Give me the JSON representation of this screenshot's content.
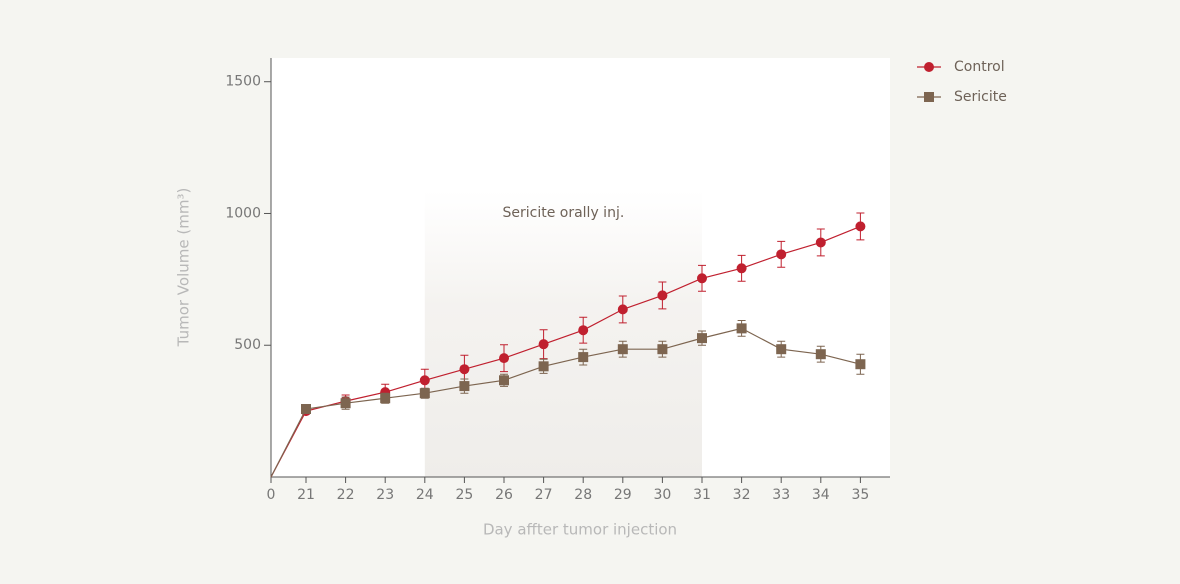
{
  "chart_data": {
    "type": "line",
    "xlabel": "Day affter tumor injection",
    "ylabel": "Tumor Volume (mm³)",
    "annotation": "Sericite orally inj.",
    "shade_x": [
      24,
      31
    ],
    "categories": [
      "0",
      "21",
      "22",
      "23",
      "24",
      "25",
      "26",
      "27",
      "28",
      "29",
      "30",
      "31",
      "32",
      "33",
      "34",
      "35"
    ],
    "series": [
      {
        "name": "Control",
        "color": "#c0202f",
        "marker": "circle",
        "values": [
          0,
          250,
          288,
          322,
          367,
          409,
          451,
          504,
          557,
          636,
          689,
          754,
          792,
          845,
          890,
          951
        ],
        "errors": [
          null,
          10,
          23,
          30,
          42,
          53,
          51,
          55,
          49,
          51,
          51,
          49,
          49,
          49,
          51,
          51
        ]
      },
      {
        "name": "Sericite",
        "color": "#7d6550",
        "marker": "square",
        "values": [
          0,
          258,
          280,
          299,
          318,
          345,
          367,
          420,
          455,
          485,
          485,
          527,
          564,
          485,
          466,
          428
        ],
        "errors": [
          null,
          12,
          23,
          19,
          19,
          27,
          23,
          27,
          30,
          30,
          30,
          27,
          30,
          30,
          30,
          38
        ]
      }
    ],
    "ylim": [
      0,
      1590
    ],
    "yticks": [
      500,
      1000,
      1500
    ],
    "legend": "outside-top-right"
  }
}
